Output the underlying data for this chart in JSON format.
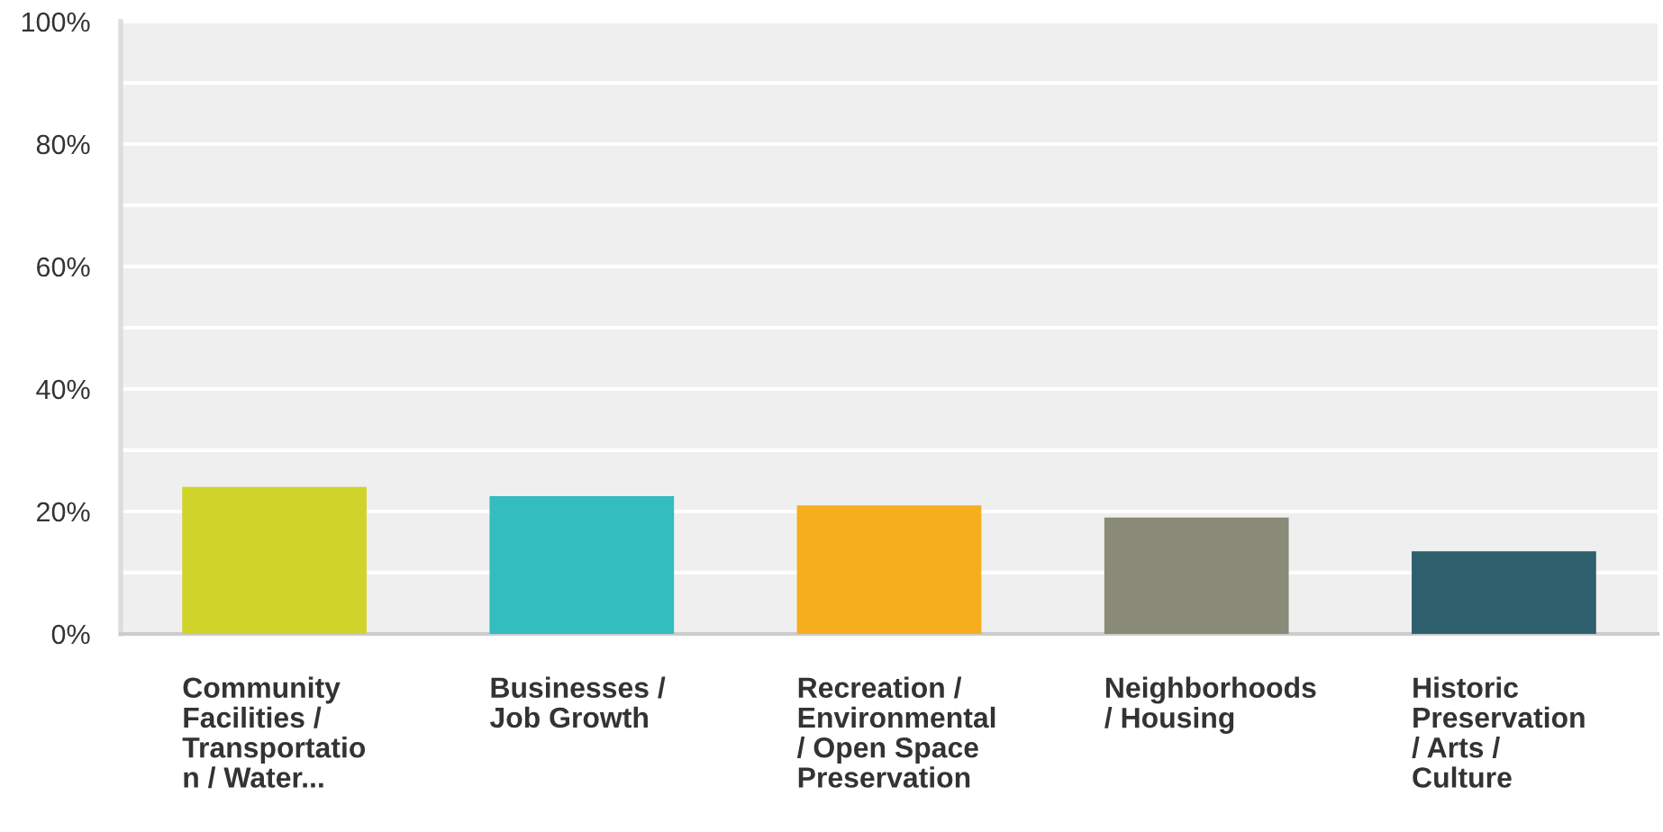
{
  "chart_data": {
    "type": "bar",
    "categories": [
      "Community\nFacilities /\nTransportatio\nn / Water...",
      "Businesses /\nJob Growth",
      "Recreation /\nEnvironmental\n/ Open Space\nPreservation",
      "Neighborhoods\n/ Housing",
      "Historic\nPreservation\n/ Arts /\nCulture"
    ],
    "values": [
      24,
      22.5,
      21,
      19,
      13.5
    ],
    "colors": [
      "#d0d32a",
      "#33bdbf",
      "#f6ae1f",
      "#8a8a78",
      "#2e5f6c"
    ],
    "ylim": [
      0,
      100
    ],
    "yticks": [
      {
        "value": 0,
        "label": "0%"
      },
      {
        "value": 10,
        "label": null
      },
      {
        "value": 20,
        "label": "20%"
      },
      {
        "value": 30,
        "label": null
      },
      {
        "value": 40,
        "label": "40%"
      },
      {
        "value": 50,
        "label": null
      },
      {
        "value": 60,
        "label": "60%"
      },
      {
        "value": 70,
        "label": null
      },
      {
        "value": 80,
        "label": "80%"
      },
      {
        "value": 90,
        "label": null
      },
      {
        "value": 100,
        "label": "100%"
      }
    ],
    "grid": "y",
    "legend": false
  }
}
